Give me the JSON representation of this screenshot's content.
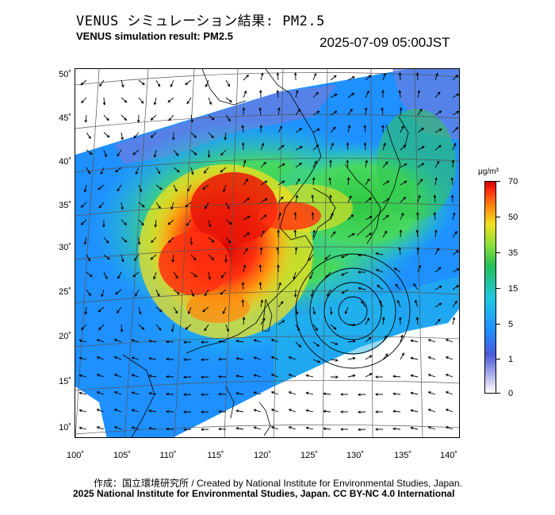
{
  "header": {
    "title_jp": "VENUS シミュレーション結果: PM2.5",
    "title_en": "VENUS simulation result: PM2.5",
    "timestamp": "2025-07-09 05:00JST"
  },
  "map": {
    "latitude_labels": [
      "50˚",
      "45˚",
      "40˚",
      "35˚",
      "30˚",
      "25˚",
      "20˚",
      "15˚",
      "10˚"
    ],
    "longitude_labels": [
      "100˚",
      "105˚",
      "110˚",
      "115˚",
      "120˚",
      "125˚",
      "130˚",
      "135˚",
      "140˚"
    ],
    "features": [
      "pm2.5-concentration-field",
      "wind-vectors",
      "coastlines",
      "typhoon-circulation"
    ]
  },
  "colorbar": {
    "unit": "μg/m³",
    "labels": [
      "70",
      "50",
      "35",
      "15",
      "5",
      "1",
      "0"
    ],
    "colors": [
      "#d00000",
      "#ff8a10",
      "#f0e020",
      "#22c05a",
      "#20c8e0",
      "#1e90ff",
      "#4a5ad8",
      "#c8c8f0",
      "#ffffff"
    ]
  },
  "footer": {
    "credit_jp": "作成：国立環境研究所 / Created by National Institute for Environmental Studies, Japan.",
    "credit_en": "2025 National Institute for Environmental Studies, Japan. CC BY-NC 4.0 International"
  }
}
